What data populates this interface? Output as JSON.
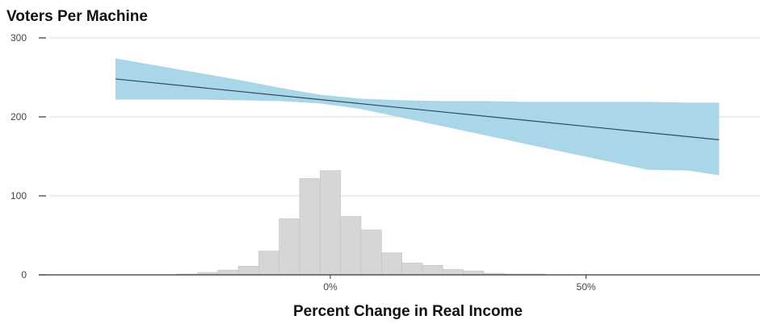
{
  "colors": {
    "band": "#a9d6e8",
    "trend_line": "#2f4b5a",
    "histogram": "#d6d6d6",
    "histogram_edge": "#c4c4c4",
    "grid": "#dddddd",
    "axis": "#333333"
  },
  "chart_data": {
    "type": "line",
    "title": "Voters Per Machine",
    "xlabel": "Percent Change in Real Income",
    "ylabel": "",
    "xlim": [
      -57,
      84
    ],
    "ylim": [
      0,
      300
    ],
    "grid": true,
    "x_ticks": [
      {
        "value": 0,
        "label": "0%"
      },
      {
        "value": 50,
        "label": "50%"
      }
    ],
    "y_ticks": [
      {
        "value": 0,
        "label": "0"
      },
      {
        "value": 100,
        "label": "100"
      },
      {
        "value": 200,
        "label": "200"
      },
      {
        "value": 300,
        "label": "300"
      }
    ],
    "trend": {
      "x": [
        -42,
        76
      ],
      "y": [
        248,
        171
      ]
    },
    "confidence_band": {
      "x": [
        -42,
        -34,
        -26,
        -18,
        -10,
        -2,
        6,
        14,
        22,
        30,
        38,
        46,
        54,
        62,
        70,
        76
      ],
      "upper": [
        274,
        265,
        256,
        247,
        237,
        228,
        223,
        221,
        220,
        220,
        219,
        219,
        219,
        219,
        218,
        218
      ],
      "lower": [
        222,
        222,
        222,
        221,
        220,
        217,
        210,
        199,
        188,
        177,
        166,
        155,
        144,
        133,
        132,
        126
      ]
    },
    "histogram": {
      "bins": [
        {
          "x0": -30,
          "x1": -26,
          "y": 1
        },
        {
          "x0": -26,
          "x1": -22,
          "y": 3
        },
        {
          "x0": -22,
          "x1": -18,
          "y": 6
        },
        {
          "x0": -18,
          "x1": -14,
          "y": 11
        },
        {
          "x0": -14,
          "x1": -10,
          "y": 30
        },
        {
          "x0": -10,
          "x1": -6,
          "y": 71
        },
        {
          "x0": -6,
          "x1": -2,
          "y": 122
        },
        {
          "x0": -2,
          "x1": 2,
          "y": 132
        },
        {
          "x0": 2,
          "x1": 6,
          "y": 74
        },
        {
          "x0": 6,
          "x1": 10,
          "y": 57
        },
        {
          "x0": 10,
          "x1": 14,
          "y": 28
        },
        {
          "x0": 14,
          "x1": 18,
          "y": 15
        },
        {
          "x0": 18,
          "x1": 22,
          "y": 12
        },
        {
          "x0": 22,
          "x1": 26,
          "y": 7
        },
        {
          "x0": 26,
          "x1": 30,
          "y": 5
        },
        {
          "x0": 30,
          "x1": 34,
          "y": 2
        },
        {
          "x0": 34,
          "x1": 38,
          "y": 1
        },
        {
          "x0": 38,
          "x1": 42,
          "y": 1
        }
      ]
    }
  }
}
